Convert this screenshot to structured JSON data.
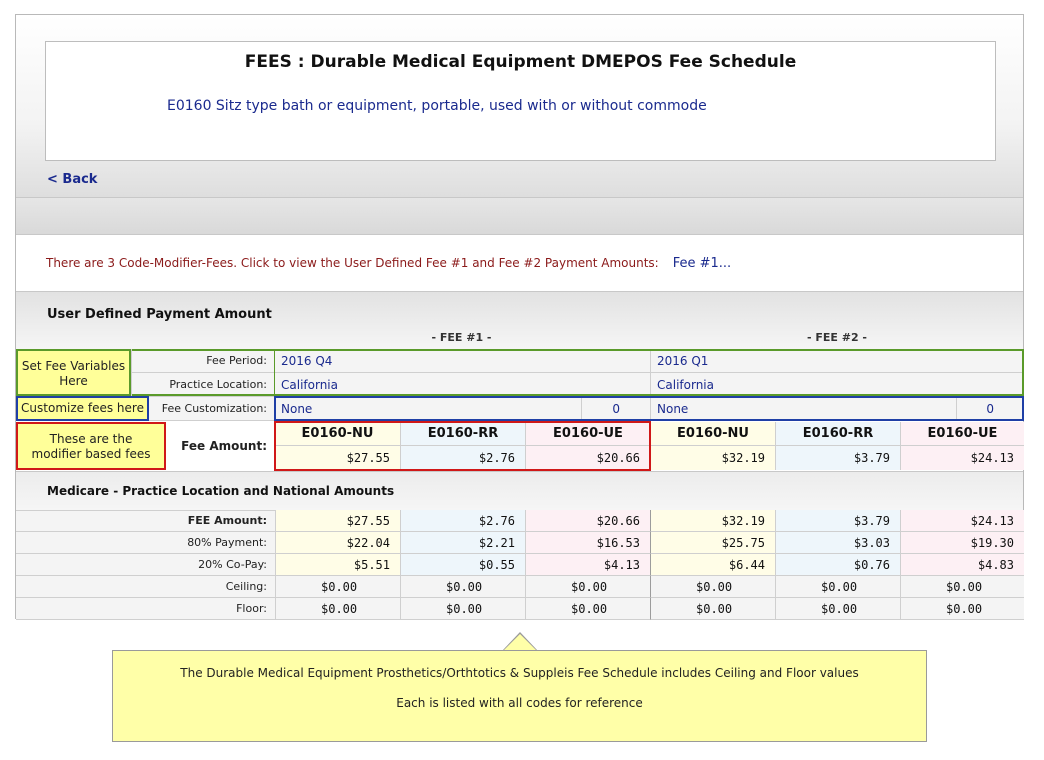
{
  "header": {
    "title": "FEES : Durable Medical Equipment DMEPOS Fee Schedule",
    "description": "E0160 Sitz type bath or equipment, portable, used with or without commode",
    "back_label": "< Back"
  },
  "notice": {
    "text": "There are 3 Code-Modifier-Fees. Click to view the User Defined Fee #1 and Fee #2 Payment Amounts:",
    "link": "Fee #1..."
  },
  "user_defined": {
    "title": "User Defined Payment Amount",
    "fee1_header": "- FEE #1 -",
    "fee2_header": "- FEE #2 -",
    "labels": {
      "fee_period": "Fee Period:",
      "practice_location": "Practice Location:",
      "fee_customization": "Fee Customization:",
      "fee_amount": "Fee Amount:"
    },
    "fee1": {
      "period": "2016 Q4",
      "location": "California",
      "customization": "None",
      "customization_value": "0"
    },
    "fee2": {
      "period": "2016 Q1",
      "location": "California",
      "customization": "None",
      "customization_value": "0"
    },
    "codes": [
      "E0160-NU",
      "E0160-RR",
      "E0160-UE",
      "E0160-NU",
      "E0160-RR",
      "E0160-UE"
    ],
    "amounts": [
      "$27.55",
      "$2.76",
      "$20.66",
      "$32.19",
      "$3.79",
      "$24.13"
    ]
  },
  "callouts": {
    "set_fee": "Set Fee Variables Here",
    "customize": "Customize fees here",
    "modifier": "These are the modifier based fees"
  },
  "medicare": {
    "title": "Medicare - Practice Location and National Amounts",
    "rows": [
      {
        "label": "FEE Amount:",
        "values": [
          "$27.55",
          "$2.76",
          "$20.66",
          "$32.19",
          "$3.79",
          "$24.13"
        ]
      },
      {
        "label": "80% Payment:",
        "values": [
          "$22.04",
          "$2.21",
          "$16.53",
          "$25.75",
          "$3.03",
          "$19.30"
        ]
      },
      {
        "label": "20% Co-Pay:",
        "values": [
          "$5.51",
          "$0.55",
          "$4.13",
          "$6.44",
          "$0.76",
          "$4.83"
        ]
      },
      {
        "label": "Ceiling:",
        "values": [
          "$0.00",
          "$0.00",
          "$0.00",
          "$0.00",
          "$0.00",
          "$0.00"
        ]
      },
      {
        "label": "Floor:",
        "values": [
          "$0.00",
          "$0.00",
          "$0.00",
          "$0.00",
          "$0.00",
          "$0.00"
        ]
      }
    ]
  },
  "bottom_note": {
    "line1": "The Durable Medical Equipment Prosthetics/Orthtotics & Suppleis  Fee Schedule includes Ceiling and Floor values",
    "line2": "Each is listed with all codes for reference"
  },
  "colors": {
    "link_blue": "#1a2a8e",
    "notice_red": "#8b1a1a",
    "callout_yellow": "#ffff99",
    "green_border": "#5a9a2a",
    "blue_border": "#1f3fa6",
    "red_border": "#d01818"
  }
}
